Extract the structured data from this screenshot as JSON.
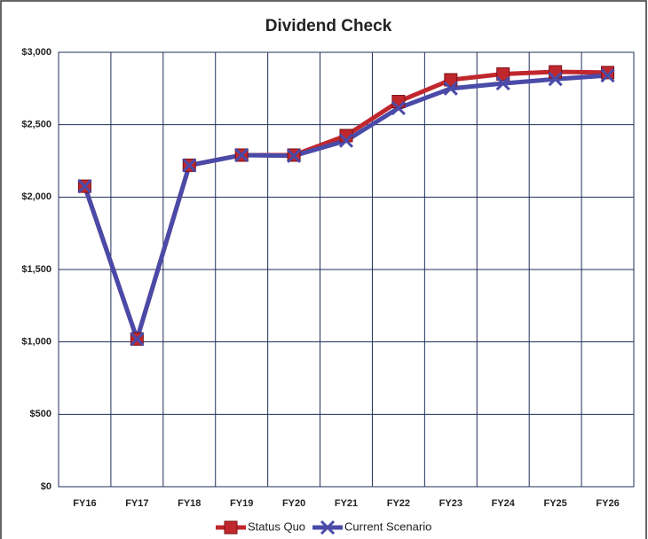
{
  "chart_data": {
    "type": "line",
    "title": "Dividend Check",
    "categories": [
      "FY16",
      "FY17",
      "FY18",
      "FY19",
      "FY20",
      "FY21",
      "FY22",
      "FY23",
      "FY24",
      "FY25",
      "FY26"
    ],
    "series": [
      {
        "name": "Status Quo",
        "color": "#c0272d",
        "marker": "square",
        "values": [
          2075,
          1020,
          2220,
          2290,
          2290,
          2425,
          2660,
          2810,
          2850,
          2865,
          2860
        ]
      },
      {
        "name": "Current Scenario",
        "color": "#4a4aa8",
        "marker": "x",
        "values": [
          2075,
          1020,
          2220,
          2290,
          2285,
          2390,
          2615,
          2750,
          2785,
          2815,
          2840
        ]
      }
    ],
    "ylim": [
      0,
      3000
    ],
    "yticks": [
      {
        "value": 0,
        "label": "$0"
      },
      {
        "value": 500,
        "label": "$500"
      },
      {
        "value": 1000,
        "label": "$1,000"
      },
      {
        "value": 1500,
        "label": "$1,500"
      },
      {
        "value": 2000,
        "label": "$2,000"
      },
      {
        "value": 2500,
        "label": "$2,500"
      },
      {
        "value": 3000,
        "label": "$3,000"
      }
    ],
    "grid": true,
    "legend": "bottom"
  }
}
